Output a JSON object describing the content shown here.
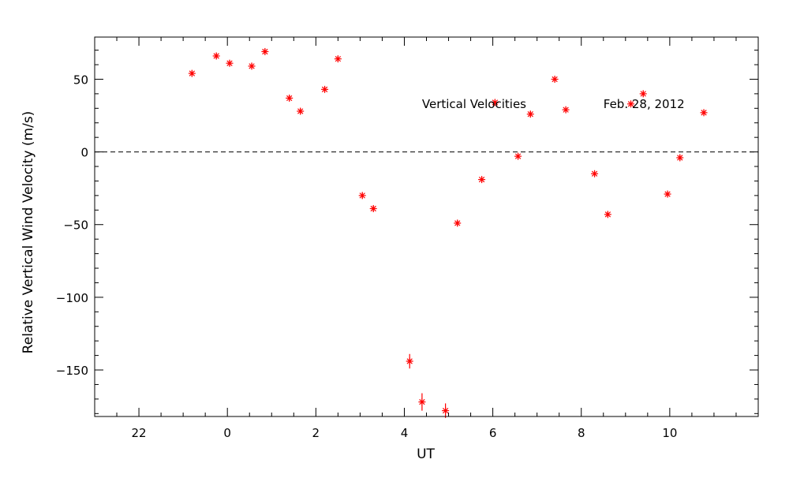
{
  "chart_data": {
    "type": "scatter",
    "title": "",
    "xlabel": "UT",
    "ylabel": "Relative Vertical Wind Velocity (m/s)",
    "xlim": [
      -3,
      12
    ],
    "ylim": [
      -182,
      79
    ],
    "x_ticks": [
      22,
      0,
      2,
      4,
      6,
      8,
      10
    ],
    "y_ticks": [
      50,
      0,
      -50,
      -100,
      -150
    ],
    "reference_line": {
      "y": 0,
      "style": "dashed"
    },
    "annotations": [
      {
        "text": "Vertical Velocities",
        "x": 4.4,
        "y": 33
      },
      {
        "text": "Feb. 28, 2012",
        "x": 8.5,
        "y": 33
      }
    ],
    "marker": {
      "symbol": "asterisk",
      "color": "#ff0000"
    },
    "points": [
      {
        "x": -0.8,
        "y": 54,
        "err": 2
      },
      {
        "x": -0.25,
        "y": 66,
        "err": 2
      },
      {
        "x": 0.05,
        "y": 61,
        "err": 2
      },
      {
        "x": 0.55,
        "y": 59,
        "err": 2
      },
      {
        "x": 0.85,
        "y": 69,
        "err": 2
      },
      {
        "x": 1.4,
        "y": 37,
        "err": 2
      },
      {
        "x": 1.65,
        "y": 28,
        "err": 2
      },
      {
        "x": 2.2,
        "y": 43,
        "err": 2
      },
      {
        "x": 2.5,
        "y": 64,
        "err": 2
      },
      {
        "x": 3.05,
        "y": -30,
        "err": 2
      },
      {
        "x": 3.3,
        "y": -39,
        "err": 2
      },
      {
        "x": 4.12,
        "y": -144,
        "err": 5
      },
      {
        "x": 4.4,
        "y": -172,
        "err": 6
      },
      {
        "x": 4.93,
        "y": -178,
        "err": 5
      },
      {
        "x": 5.2,
        "y": -49,
        "err": 2
      },
      {
        "x": 5.75,
        "y": -19,
        "err": 2
      },
      {
        "x": 6.05,
        "y": 34,
        "err": 2
      },
      {
        "x": 6.57,
        "y": -3,
        "err": 2
      },
      {
        "x": 6.85,
        "y": 26,
        "err": 2
      },
      {
        "x": 7.4,
        "y": 50,
        "err": 2
      },
      {
        "x": 7.65,
        "y": 29,
        "err": 2
      },
      {
        "x": 8.3,
        "y": -15,
        "err": 2
      },
      {
        "x": 8.6,
        "y": -43,
        "err": 2
      },
      {
        "x": 9.12,
        "y": 33,
        "err": 2
      },
      {
        "x": 9.4,
        "y": 40,
        "err": 2
      },
      {
        "x": 9.95,
        "y": -29,
        "err": 2
      },
      {
        "x": 10.23,
        "y": -4,
        "err": 2
      },
      {
        "x": 10.77,
        "y": 27,
        "err": 2
      }
    ]
  }
}
